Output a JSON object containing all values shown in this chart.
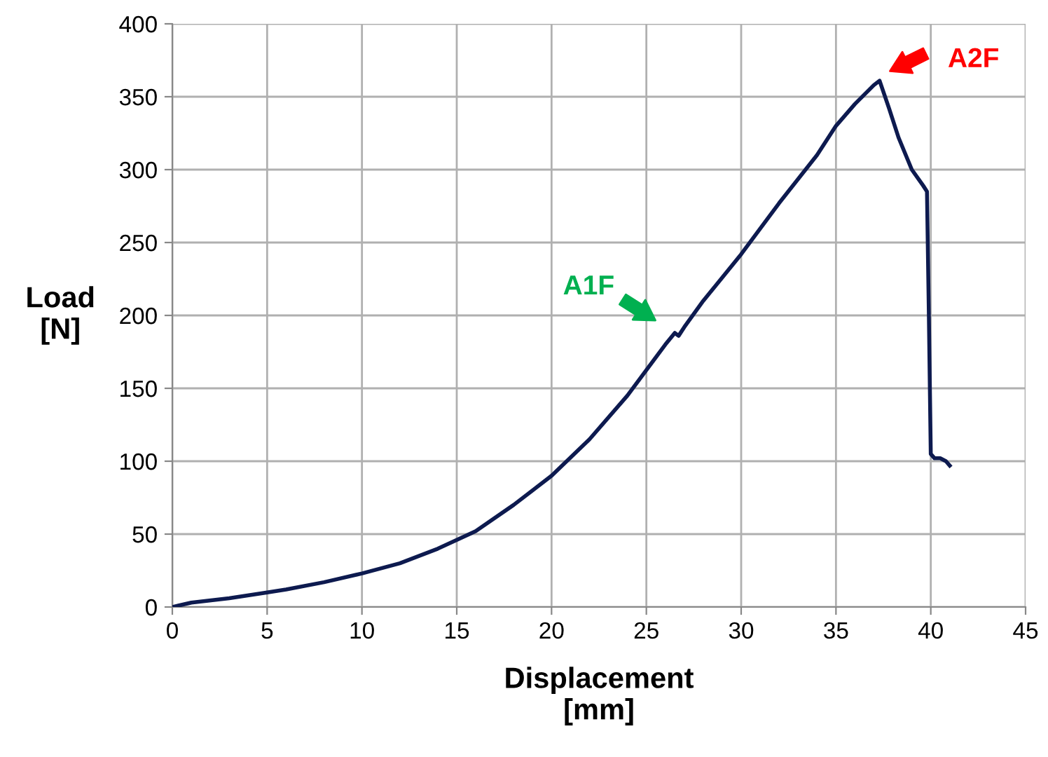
{
  "chart_data": {
    "type": "line",
    "xlabel": "Displacement\n[mm]",
    "ylabel": "Load\n[N]",
    "x": [
      0,
      1,
      3,
      5,
      6,
      8,
      10,
      12,
      14,
      16,
      18,
      20,
      22,
      24,
      26,
      26.5,
      26.7,
      27,
      28,
      30,
      32,
      34,
      35,
      36,
      37,
      37.3,
      37.8,
      38.3,
      39,
      39.6,
      39.8,
      39.9,
      40.0,
      40.2,
      40.5,
      40.8,
      41
    ],
    "series": [
      {
        "color": "#0d1a4f",
        "values": [
          0,
          3,
          6,
          10,
          12,
          17,
          23,
          30,
          40,
          52,
          70,
          90,
          115,
          145,
          180,
          188,
          186,
          192,
          210,
          242,
          277,
          310,
          330,
          345,
          358,
          361,
          342,
          322,
          300,
          289,
          285,
          200,
          105,
          102,
          102,
          100,
          97
        ]
      }
    ],
    "xlim": [
      0,
      45
    ],
    "xticks": [
      0,
      5,
      10,
      15,
      20,
      25,
      30,
      35,
      40,
      45
    ],
    "ylim": [
      0,
      400
    ],
    "yticks": [
      0,
      50,
      100,
      150,
      200,
      250,
      300,
      350,
      400
    ],
    "grid": true,
    "legend": false,
    "marker": "none",
    "line_style": "solid",
    "annotations": [
      "A1F",
      "A2F"
    ]
  }
}
